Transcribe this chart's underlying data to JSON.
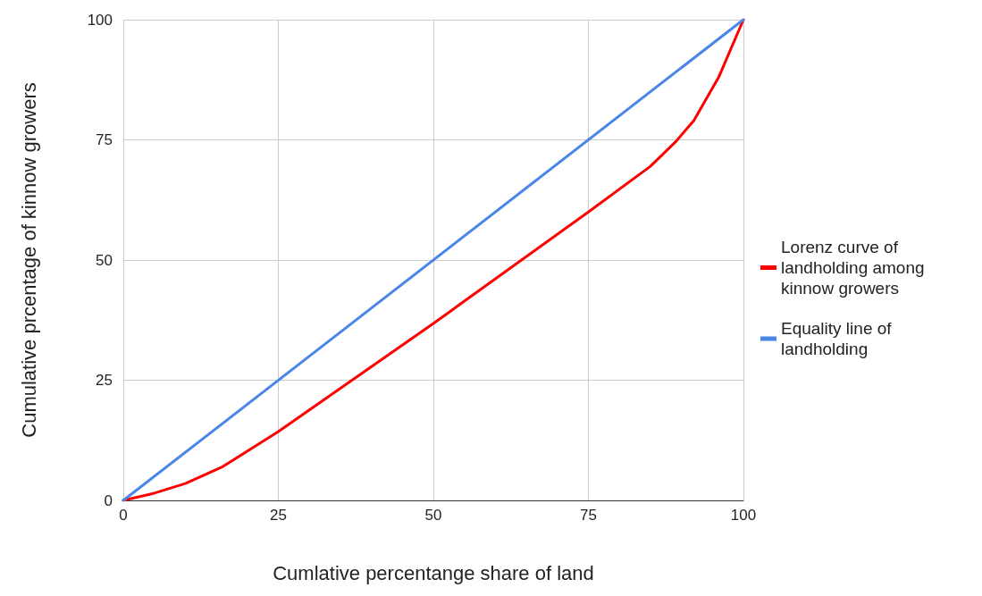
{
  "chart_data": {
    "type": "line",
    "xlabel": "Cumlative percentange share of land",
    "ylabel": "Cumulative prcentage of kinnow growers",
    "series": [
      {
        "name": "Lorenz curve of landholding among kinnow growers",
        "color": "#ff0000",
        "x": [
          0,
          5,
          10,
          16,
          25,
          50,
          75,
          85,
          89,
          92,
          96,
          100
        ],
        "values": [
          0,
          1.5,
          3.5,
          7,
          14.3,
          36.8,
          60,
          69.5,
          74.5,
          79,
          88,
          100
        ]
      },
      {
        "name": "Equality line of landholding",
        "color": "#4a86e8",
        "x": [
          0,
          100
        ],
        "values": [
          0,
          100
        ]
      }
    ],
    "xlim": [
      0,
      100
    ],
    "xticks": [
      0,
      25,
      50,
      75,
      100
    ],
    "ylim": [
      0,
      100
    ],
    "yticks": [
      0,
      25,
      50,
      75,
      100
    ],
    "grid": true,
    "legend": "right",
    "marker": "none",
    "line_style": "solid"
  }
}
